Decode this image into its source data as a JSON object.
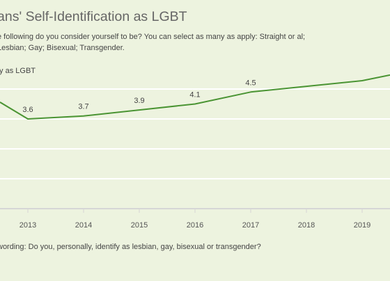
{
  "title": "ans' Self-Identification as LGBT",
  "subtitle": "e following do you consider yourself to be? You can select as many as apply: Straight or al; Lesbian; Gay; Bisexual; Transgender.",
  "footnote": "wording: Do you, personally, identify as lesbian, gay, bisexual or transgender?",
  "colors": {
    "line": "#4a9433",
    "background": "#edf3df",
    "gridline": "#ffffff",
    "baseline": "#d6d6d6"
  },
  "chart_data": {
    "type": "line",
    "x": [
      "2013",
      "2014",
      "2015",
      "2016",
      "2017",
      "2018",
      "2019"
    ],
    "series": [
      {
        "name": "fy as LGBT",
        "values": [
          3.6,
          3.7,
          3.9,
          4.1,
          4.5,
          null,
          null
        ],
        "labels": [
          "3.6",
          "3.7",
          "3.9",
          "4.1",
          "4.5",
          "",
          ""
        ]
      }
    ],
    "grid": true,
    "legend": "none"
  }
}
